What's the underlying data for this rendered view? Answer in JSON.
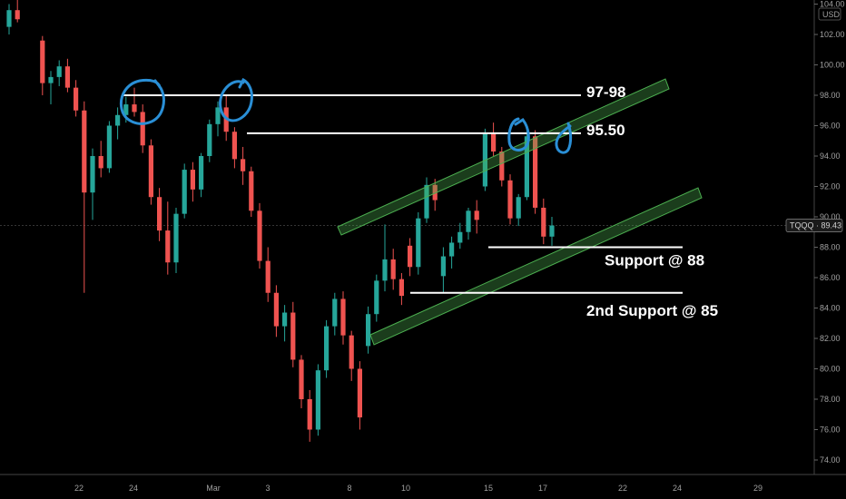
{
  "chart_data": {
    "type": "candlestick",
    "ticker_label": "TQQQ · 89.43",
    "currency_label": "USD",
    "current_price": 89.43,
    "ylim": [
      73,
      104.5
    ],
    "y_ticks": [
      "104.00",
      "102.00",
      "100.00",
      "98.00",
      "96.00",
      "94.00",
      "92.00",
      "90.00",
      "88.00",
      "86.00",
      "84.00",
      "82.00",
      "80.00",
      "78.00",
      "76.00",
      "74.00"
    ],
    "x_ticks": [
      "22",
      "24",
      "Mar",
      "3",
      "8",
      "10",
      "15",
      "17",
      "22",
      "24",
      "29"
    ],
    "colors": {
      "up": "#26a69a",
      "down": "#ef5350",
      "channel": "#4caf50",
      "circle": "#2a8fd6",
      "line": "#ffffff"
    },
    "annotations": [
      {
        "text": "97-98",
        "level": 98
      },
      {
        "text": "95.50",
        "level": 95.5
      },
      {
        "text": "Support @ 88",
        "level": 88
      },
      {
        "text": "2nd Support @ 85",
        "level": 85
      }
    ],
    "candles": [
      [
        0,
        102.5,
        104.0,
        102.0,
        103.6
      ],
      [
        1,
        103.6,
        104.3,
        102.8,
        103.0
      ],
      [
        4,
        101.6,
        101.9,
        98.0,
        98.8
      ],
      [
        5,
        98.8,
        99.6,
        97.4,
        99.2
      ],
      [
        6,
        99.2,
        100.3,
        98.6,
        99.9
      ],
      [
        7,
        99.9,
        100.4,
        98.2,
        98.5
      ],
      [
        8,
        98.5,
        99.0,
        96.6,
        97.0
      ],
      [
        9,
        97.0,
        97.6,
        85.0,
        91.6
      ],
      [
        10,
        91.6,
        94.5,
        89.8,
        94.0
      ],
      [
        11,
        94.0,
        95.0,
        92.6,
        93.2
      ],
      [
        12,
        93.2,
        96.3,
        92.9,
        96.0
      ],
      [
        13,
        96.0,
        97.2,
        95.1,
        96.7
      ],
      [
        14,
        96.7,
        97.9,
        96.2,
        97.4
      ],
      [
        15,
        97.4,
        98.5,
        96.6,
        96.9
      ],
      [
        16,
        96.9,
        97.4,
        94.2,
        94.7
      ],
      [
        17,
        94.7,
        95.1,
        90.8,
        91.3
      ],
      [
        18,
        91.3,
        91.9,
        88.4,
        89.1
      ],
      [
        19,
        89.1,
        91.0,
        86.2,
        87.0
      ],
      [
        20,
        87.0,
        90.6,
        86.3,
        90.2
      ],
      [
        21,
        90.2,
        93.5,
        89.9,
        93.1
      ],
      [
        22,
        93.1,
        93.6,
        91.0,
        91.8
      ],
      [
        23,
        91.8,
        94.2,
        91.3,
        94.0
      ],
      [
        24,
        94.0,
        96.4,
        93.6,
        96.1
      ],
      [
        25,
        96.1,
        97.6,
        95.3,
        97.2
      ],
      [
        26,
        97.2,
        98.0,
        95.0,
        95.6
      ],
      [
        27,
        95.6,
        95.9,
        93.2,
        93.8
      ],
      [
        28,
        93.8,
        94.6,
        92.1,
        93.0
      ],
      [
        29,
        93.0,
        93.3,
        90.0,
        90.4
      ],
      [
        30,
        90.4,
        90.9,
        86.6,
        87.1
      ],
      [
        31,
        87.1,
        88.0,
        84.4,
        85.0
      ],
      [
        32,
        85.0,
        85.5,
        82.1,
        82.8
      ],
      [
        33,
        82.8,
        84.2,
        81.8,
        83.7
      ],
      [
        34,
        83.7,
        84.4,
        80.1,
        80.6
      ],
      [
        35,
        80.6,
        80.9,
        77.4,
        78.0
      ],
      [
        36,
        78.0,
        78.6,
        75.2,
        76.0
      ],
      [
        37,
        76.0,
        80.3,
        75.6,
        79.9
      ],
      [
        38,
        79.9,
        83.2,
        79.4,
        82.8
      ],
      [
        39,
        82.8,
        85.0,
        82.2,
        84.6
      ],
      [
        40,
        84.6,
        85.1,
        81.6,
        82.2
      ],
      [
        41,
        82.2,
        82.5,
        79.2,
        80.0
      ],
      [
        42,
        80.0,
        80.5,
        76.0,
        76.8
      ],
      [
        43,
        81.5,
        84.1,
        81.0,
        83.6
      ],
      [
        44,
        83.6,
        86.2,
        83.1,
        85.8
      ],
      [
        45,
        85.8,
        89.5,
        85.1,
        87.2
      ],
      [
        46,
        87.2,
        87.9,
        85.2,
        85.9
      ],
      [
        47,
        85.9,
        86.3,
        84.2,
        84.8
      ],
      [
        48,
        88.1,
        88.6,
        86.1,
        86.7
      ],
      [
        49,
        86.7,
        90.3,
        86.2,
        89.9
      ],
      [
        50,
        89.9,
        92.6,
        89.6,
        92.1
      ],
      [
        51,
        92.1,
        92.5,
        90.4,
        91.1
      ],
      [
        52,
        86.1,
        88.0,
        85.0,
        87.4
      ],
      [
        53,
        87.4,
        88.7,
        86.6,
        88.3
      ],
      [
        54,
        88.3,
        89.6,
        87.9,
        89.0
      ],
      [
        55,
        89.0,
        90.6,
        88.5,
        90.4
      ],
      [
        56,
        90.4,
        91.1,
        88.9,
        89.8
      ],
      [
        57,
        92.0,
        95.8,
        91.7,
        95.5
      ],
      [
        58,
        95.5,
        96.2,
        94.0,
        94.3
      ],
      [
        59,
        94.3,
        94.6,
        92.0,
        92.4
      ],
      [
        60,
        92.4,
        92.8,
        89.5,
        89.9
      ],
      [
        61,
        89.9,
        91.5,
        89.4,
        91.3
      ],
      [
        62,
        91.3,
        95.7,
        91.1,
        95.3
      ],
      [
        63,
        95.3,
        95.7,
        90.2,
        90.6
      ],
      [
        64,
        90.6,
        91.2,
        88.2,
        88.7
      ],
      [
        65,
        88.7,
        90.0,
        88.1,
        89.43
      ]
    ]
  }
}
